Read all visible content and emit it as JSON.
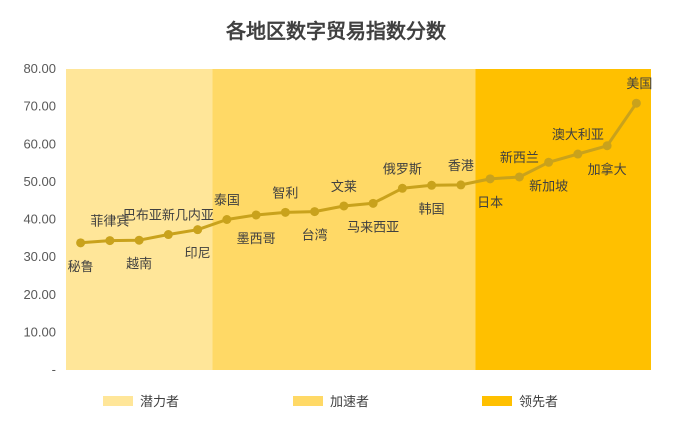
{
  "chart_data": {
    "type": "line",
    "title": "各地区数字贸易指数分数",
    "ylim": [
      0,
      80
    ],
    "yticks": [
      "-",
      "10.00",
      "20.00",
      "30.00",
      "40.00",
      "50.00",
      "60.00",
      "70.00",
      "80.00"
    ],
    "bands": [
      {
        "name": "潜力者",
        "color": "#FFE699",
        "from": 0,
        "to": 5
      },
      {
        "name": "加速者",
        "color": "#FFD966",
        "from": 5,
        "to": 14
      },
      {
        "name": "领先者",
        "color": "#FFC000",
        "from": 14,
        "to": 20
      }
    ],
    "line_color": "#C9A21C",
    "x": [
      "秘鲁",
      "菲律宾",
      "越南",
      "巴布亚新几内亚",
      "印尼",
      "泰国",
      "墨西哥",
      "智利",
      "台湾",
      "文莱",
      "马来西亚",
      "俄罗斯",
      "韩国",
      "香港",
      "日本",
      "新西兰",
      "新加坡",
      "澳大利亚",
      "加拿大",
      "美国"
    ],
    "values": [
      33.8,
      34.4,
      34.5,
      36.0,
      37.3,
      40.0,
      41.2,
      41.9,
      42.1,
      43.6,
      44.3,
      48.3,
      49.1,
      49.2,
      50.8,
      51.3,
      55.2,
      57.4,
      59.6,
      70.9
    ],
    "label_pos": [
      "below",
      "above",
      "below",
      "above",
      "below",
      "above",
      "below",
      "above",
      "below",
      "above",
      "below",
      "above",
      "below",
      "above",
      "below",
      "above",
      "below",
      "above",
      "below",
      "above"
    ],
    "legend": [
      "潜力者",
      "加速者",
      "领先者"
    ]
  }
}
